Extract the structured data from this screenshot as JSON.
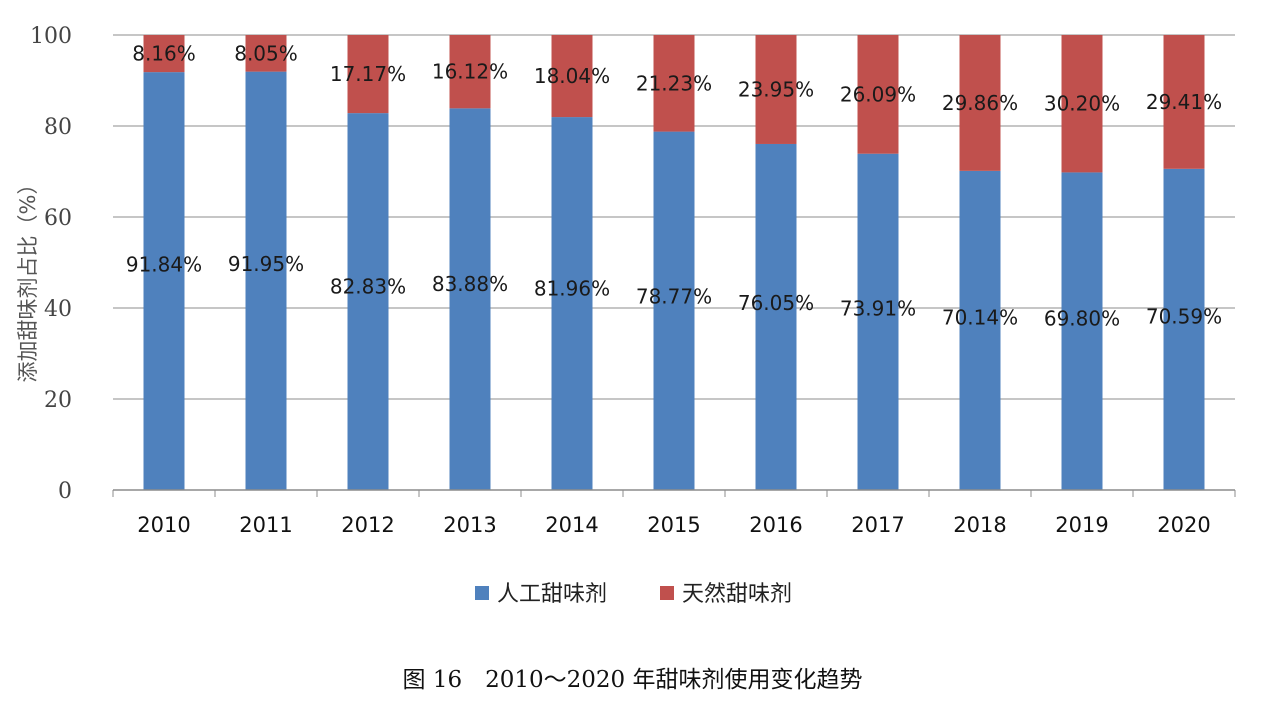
{
  "chart_data": {
    "type": "bar",
    "stacked": true,
    "categories": [
      "2010",
      "2011",
      "2012",
      "2013",
      "2014",
      "2015",
      "2016",
      "2017",
      "2018",
      "2019",
      "2020"
    ],
    "series": [
      {
        "name": "人工甜味剂",
        "color": "#4f81bd",
        "values": [
          91.84,
          91.95,
          82.83,
          83.88,
          81.96,
          78.77,
          76.05,
          73.91,
          70.14,
          69.8,
          70.59
        ],
        "labels": [
          "91.84%",
          "91.95%",
          "82.83%",
          "83.88%",
          "81.96%",
          "78.77%",
          "76.05%",
          "73.91%",
          "70.14%",
          "69.80%",
          "70.59%"
        ]
      },
      {
        "name": "天然甜味剂",
        "color": "#c0504d",
        "values": [
          8.16,
          8.05,
          17.17,
          16.12,
          18.04,
          21.23,
          23.95,
          26.09,
          29.86,
          30.2,
          29.41
        ],
        "labels": [
          "8.16%",
          "8.05%",
          "17.17%",
          "16.12%",
          "18.04%",
          "21.23%",
          "23.95%",
          "26.09%",
          "29.86%",
          "30.20%",
          "29.41%"
        ]
      }
    ],
    "ylabel": "添加甜味剂占比（%）",
    "ylim": [
      0,
      100
    ],
    "yticks": [
      0,
      20,
      40,
      60,
      80,
      100
    ],
    "grid": true,
    "legend": "bottom"
  },
  "caption": "图 16　2010～2020 年甜味剂使用变化趋势"
}
